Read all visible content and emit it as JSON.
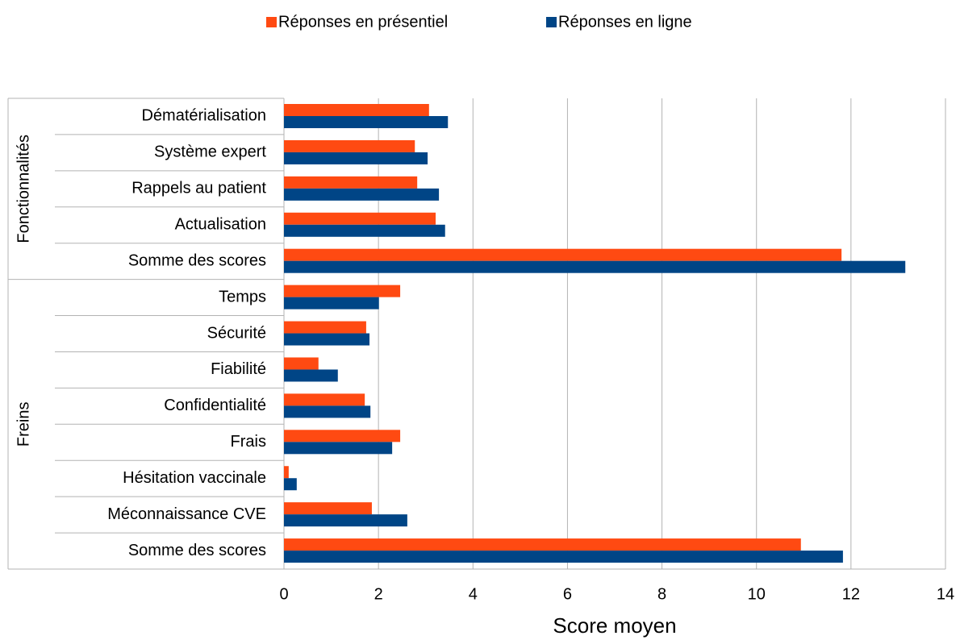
{
  "chart_data": {
    "type": "bar",
    "orientation": "horizontal",
    "groups": [
      {
        "label": "Fonctionnalités",
        "categories": [
          "Dématérialisation",
          "Système expert",
          "Rappels au patient",
          "Actualisation",
          "Somme des scores"
        ]
      },
      {
        "label": "Freins",
        "categories": [
          "Temps",
          "Sécurité",
          "Fiabilité",
          "Confidentialité",
          "Frais",
          "Hésitation vaccinale",
          "Méconnaissance CVE",
          "Somme des scores"
        ]
      }
    ],
    "series": [
      {
        "name": "Réponses en présentiel",
        "color": "#ff4a12",
        "values": [
          3.07,
          2.77,
          2.82,
          3.21,
          11.8,
          2.46,
          1.74,
          0.73,
          1.71,
          2.46,
          0.1,
          1.86,
          10.94
        ]
      },
      {
        "name": "Réponses en ligne",
        "color": "#004586",
        "values": [
          3.47,
          3.04,
          3.28,
          3.41,
          13.15,
          2.01,
          1.81,
          1.14,
          1.83,
          2.29,
          0.27,
          2.61,
          11.83
        ]
      }
    ],
    "xlabel": "Score moyen",
    "xlim": [
      0,
      14
    ],
    "xticks": [
      0,
      2,
      4,
      6,
      8,
      10,
      12,
      14
    ],
    "grid": true,
    "legend": "top"
  }
}
